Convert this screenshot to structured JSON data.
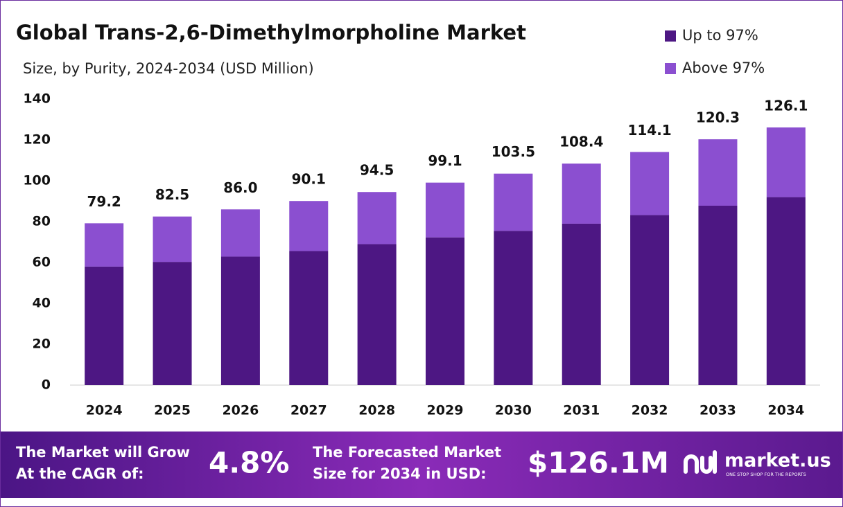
{
  "chart_data": {
    "type": "stacked_bar",
    "title": "Global Trans-2,6-Dimethylmorpholine Market",
    "subtitle": "Size, by Purity, 2024-2034 (USD Million)",
    "categories": [
      "2024",
      "2025",
      "2026",
      "2027",
      "2028",
      "2029",
      "2030",
      "2031",
      "2032",
      "2033",
      "2034"
    ],
    "series": [
      {
        "name": "Up to 97%",
        "color": "#4d1783",
        "values": [
          58.0,
          60.3,
          62.9,
          65.6,
          69.0,
          72.3,
          75.5,
          79.0,
          83.2,
          87.8,
          92.0
        ]
      },
      {
        "name": "Above 97%",
        "color": "#8b4fd0",
        "values": [
          21.2,
          22.2,
          23.1,
          24.5,
          25.5,
          26.8,
          28.0,
          29.4,
          30.9,
          32.5,
          34.1
        ]
      }
    ],
    "total_labels": [
      "79.2",
      "82.5",
      "86.0",
      "90.1",
      "94.5",
      "99.1",
      "103.5",
      "108.4",
      "114.1",
      "120.3",
      "126.1"
    ],
    "ylim": [
      0,
      140
    ],
    "yticks": [
      0,
      20,
      40,
      60,
      80,
      100,
      120,
      140
    ],
    "grid": false,
    "legend": "top-right"
  },
  "footer": {
    "cagr_text_1": "The Market will Grow",
    "cagr_text_2": "At the CAGR of:",
    "cagr": "4.8%",
    "forecast_text_1": "The Forecasted Market",
    "forecast_text_2": "Size for 2034 in USD:",
    "forecast": "$126.1M",
    "logo": "market.us",
    "tagline": "ONE STOP SHOP FOR THE REPORTS"
  }
}
